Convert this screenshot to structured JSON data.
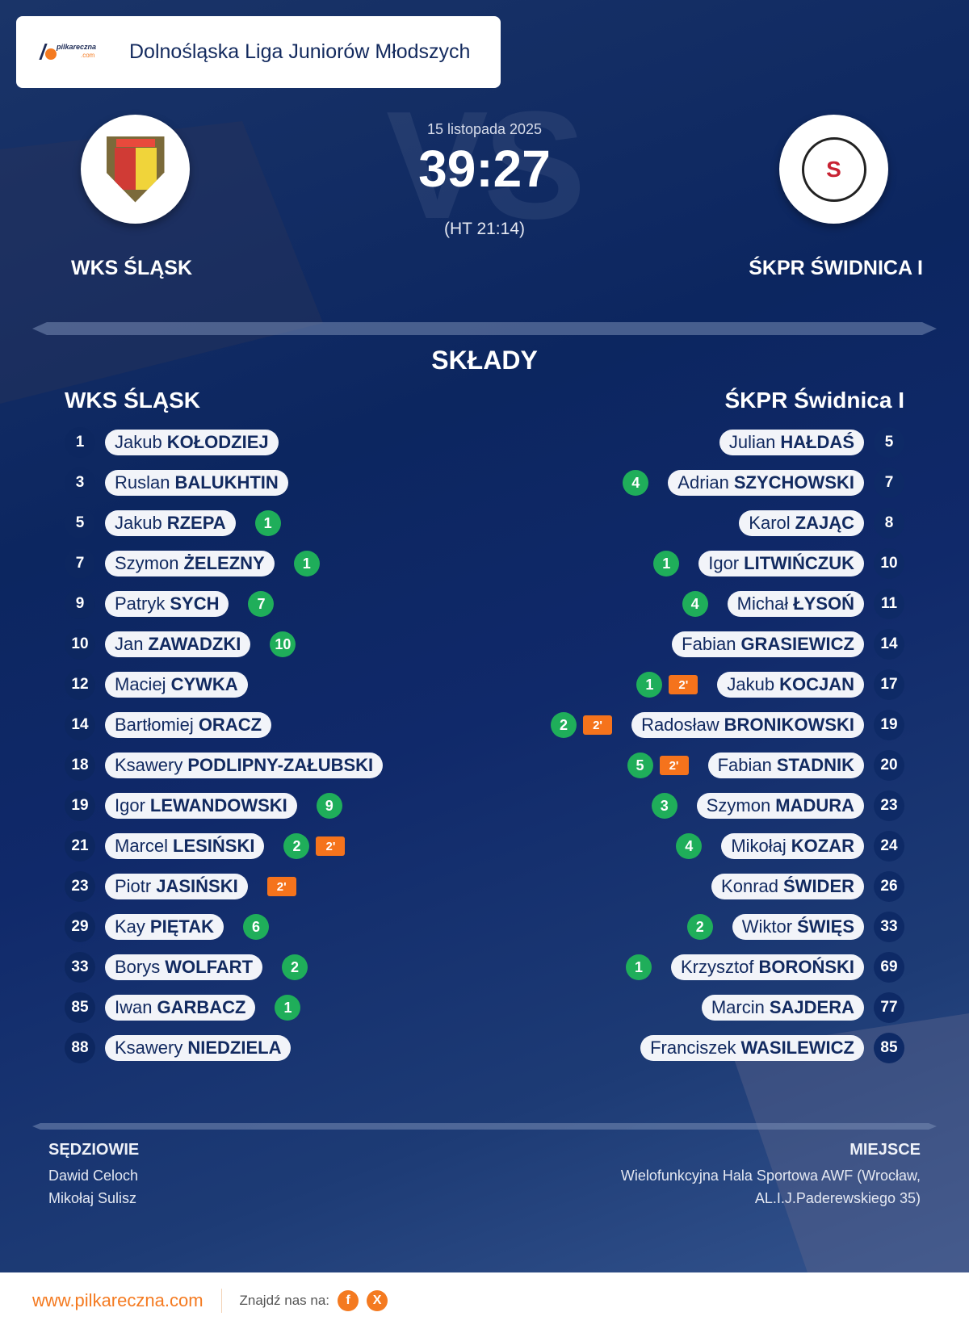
{
  "league": {
    "logo_text": "pilkareczna",
    "logo_sub": ".com",
    "title": "Dolnośląska Liga Juniorów Młodszych"
  },
  "match": {
    "date": "15 listopada 2025",
    "score": "39:27",
    "halftime": "(HT 21:14)",
    "watermark": "VS",
    "home": {
      "name": "WKS ŚLĄSK",
      "crest_icon": "wks-slask-crest"
    },
    "away": {
      "name": "ŚKPR ŚWIDNICA I",
      "crest_icon": "skpr-swidnica-crest",
      "crest_glyph": "S"
    }
  },
  "lineups": {
    "title": "SKŁADY",
    "home": {
      "name": "WKS ŚLĄSK",
      "players": [
        {
          "number": "1",
          "first": "Jakub",
          "last": "KOŁODZIEJ",
          "goals": "",
          "penalty": ""
        },
        {
          "number": "3",
          "first": "Ruslan",
          "last": "BALUKHTIN",
          "goals": "",
          "penalty": ""
        },
        {
          "number": "5",
          "first": "Jakub",
          "last": "RZEPA",
          "goals": "1",
          "penalty": ""
        },
        {
          "number": "7",
          "first": "Szymon",
          "last": "ŻELEZNY",
          "goals": "1",
          "penalty": ""
        },
        {
          "number": "9",
          "first": "Patryk",
          "last": "SYCH",
          "goals": "7",
          "penalty": ""
        },
        {
          "number": "10",
          "first": "Jan",
          "last": "ZAWADZKI",
          "goals": "10",
          "penalty": ""
        },
        {
          "number": "12",
          "first": "Maciej",
          "last": "CYWKA",
          "goals": "",
          "penalty": ""
        },
        {
          "number": "14",
          "first": "Bartłomiej",
          "last": "ORACZ",
          "goals": "",
          "penalty": ""
        },
        {
          "number": "18",
          "first": "Ksawery",
          "last": "PODLIPNY-ZAŁUBSKI",
          "goals": "",
          "penalty": ""
        },
        {
          "number": "19",
          "first": "Igor",
          "last": "LEWANDOWSKI",
          "goals": "9",
          "penalty": ""
        },
        {
          "number": "21",
          "first": "Marcel",
          "last": "LESIŃSKI",
          "goals": "2",
          "penalty": "2'"
        },
        {
          "number": "23",
          "first": "Piotr",
          "last": "JASIŃSKI",
          "goals": "",
          "penalty": "2'"
        },
        {
          "number": "29",
          "first": "Kay",
          "last": "PIĘTAK",
          "goals": "6",
          "penalty": ""
        },
        {
          "number": "33",
          "first": "Borys",
          "last": "WOLFART",
          "goals": "2",
          "penalty": ""
        },
        {
          "number": "85",
          "first": "Iwan",
          "last": "GARBACZ",
          "goals": "1",
          "penalty": ""
        },
        {
          "number": "88",
          "first": "Ksawery",
          "last": "NIEDZIELA",
          "goals": "",
          "penalty": ""
        }
      ]
    },
    "away": {
      "name": "ŚKPR Świdnica I",
      "players": [
        {
          "number": "5",
          "first": "Julian",
          "last": "HAŁDAŚ",
          "goals": "",
          "penalty": ""
        },
        {
          "number": "7",
          "first": "Adrian",
          "last": "SZYCHOWSKI",
          "goals": "4",
          "penalty": ""
        },
        {
          "number": "8",
          "first": "Karol",
          "last": "ZAJĄC",
          "goals": "",
          "penalty": ""
        },
        {
          "number": "10",
          "first": "Igor",
          "last": "LITWIŃCZUK",
          "goals": "1",
          "penalty": ""
        },
        {
          "number": "11",
          "first": "Michał",
          "last": "ŁYSOŃ",
          "goals": "4",
          "penalty": ""
        },
        {
          "number": "14",
          "first": "Fabian",
          "last": "GRASIEWICZ",
          "goals": "",
          "penalty": ""
        },
        {
          "number": "17",
          "first": "Jakub",
          "last": "KOCJAN",
          "goals": "1",
          "penalty": "2'"
        },
        {
          "number": "19",
          "first": "Radosław",
          "last": "BRONIKOWSKI",
          "goals": "2",
          "penalty": "2'"
        },
        {
          "number": "20",
          "first": "Fabian",
          "last": "STADNIK",
          "goals": "5",
          "penalty": "2'"
        },
        {
          "number": "23",
          "first": "Szymon",
          "last": "MADURA",
          "goals": "3",
          "penalty": ""
        },
        {
          "number": "24",
          "first": "Mikołaj",
          "last": "KOZAR",
          "goals": "4",
          "penalty": ""
        },
        {
          "number": "26",
          "first": "Konrad",
          "last": "ŚWIDER",
          "goals": "",
          "penalty": ""
        },
        {
          "number": "33",
          "first": "Wiktor",
          "last": "ŚWIĘS",
          "goals": "2",
          "penalty": ""
        },
        {
          "number": "69",
          "first": "Krzysztof",
          "last": "BOROŃSKI",
          "goals": "1",
          "penalty": ""
        },
        {
          "number": "77",
          "first": "Marcin",
          "last": "SAJDERA",
          "goals": "",
          "penalty": ""
        },
        {
          "number": "85",
          "first": "Franciszek",
          "last": "WASILEWICZ",
          "goals": "",
          "penalty": ""
        }
      ]
    }
  },
  "officials": {
    "title": "SĘDZIOWIE",
    "names": [
      "Dawid Celoch",
      "Mikołaj Sulisz"
    ]
  },
  "venue": {
    "title": "MIEJSCE",
    "lines": [
      "Wielofunkcyjna Hala Sportowa AWF (Wrocław,",
      "AL.I.J.Paderewskiego 35)"
    ]
  },
  "footer": {
    "website": "www.pilkareczna.com",
    "find_us": "Znajdź nas na:",
    "facebook_glyph": "f",
    "x_glyph": "X"
  },
  "colors": {
    "accent": "#f47a20",
    "goal": "#1fae5a",
    "penalty": "#f5731c",
    "navy": "#0c2660"
  }
}
